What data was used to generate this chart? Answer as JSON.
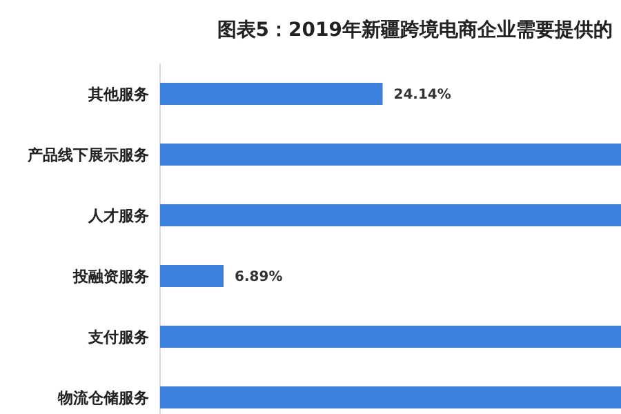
{
  "chart_data": {
    "type": "bar",
    "orientation": "horizontal",
    "title": "图表5：2019年新疆跨境电商企业需要提供的",
    "categories": [
      "其他服务",
      "产品线下展示服务",
      "人才服务",
      "投融资服务",
      "支付服务",
      "物流仓储服务"
    ],
    "values": [
      24.14,
      50,
      50,
      6.89,
      50,
      50
    ],
    "value_labels": [
      "24.14%",
      null,
      null,
      "6.89%",
      null,
      null
    ],
    "color": "#3b80dc"
  }
}
